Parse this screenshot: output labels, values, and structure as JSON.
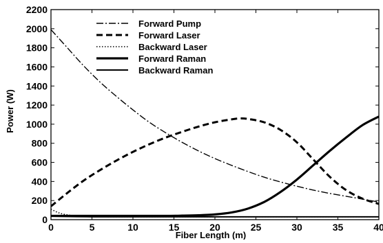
{
  "chart_data": {
    "type": "line",
    "title": "",
    "xlabel": "Fiber Length (m)",
    "ylabel": "Power (W)",
    "xlim": [
      0,
      40
    ],
    "ylim": [
      0,
      2200
    ],
    "xticks": [
      0,
      5,
      10,
      15,
      20,
      25,
      30,
      35,
      40
    ],
    "yticks": [
      0,
      200,
      400,
      600,
      800,
      1000,
      1200,
      1400,
      1600,
      1800,
      2000,
      2200
    ],
    "grid": false,
    "legend_position": "top-left",
    "series": [
      {
        "name": "Forward Pump",
        "style": "dash-dot",
        "x": [
          0,
          2,
          4,
          6,
          8,
          10,
          12,
          14,
          16,
          18,
          20,
          22,
          24,
          26,
          28,
          30,
          32,
          34,
          36,
          38,
          40
        ],
        "y": [
          1990,
          1800,
          1610,
          1440,
          1290,
          1150,
          1020,
          910,
          810,
          720,
          640,
          570,
          505,
          445,
          395,
          350,
          310,
          275,
          245,
          215,
          185
        ]
      },
      {
        "name": "Forward Laser",
        "style": "dashed",
        "x": [
          0,
          2,
          4,
          6,
          8,
          10,
          12,
          14,
          16,
          18,
          20,
          22,
          23,
          24,
          26,
          28,
          30,
          32,
          34,
          36,
          38,
          40
        ],
        "y": [
          140,
          280,
          410,
          520,
          620,
          710,
          790,
          860,
          920,
          975,
          1020,
          1050,
          1060,
          1055,
          1020,
          940,
          810,
          630,
          450,
          310,
          220,
          165
        ]
      },
      {
        "name": "Backward Laser",
        "style": "dotted",
        "x": [
          0,
          1,
          2,
          3,
          4,
          5,
          8,
          12,
          20,
          30,
          40
        ],
        "y": [
          110,
          70,
          50,
          40,
          35,
          32,
          30,
          30,
          30,
          30,
          30
        ]
      },
      {
        "name": "Forward Raman",
        "style": "solid-thick",
        "x": [
          0,
          5,
          10,
          14,
          16,
          18,
          20,
          22,
          24,
          26,
          28,
          30,
          32,
          34,
          36,
          38,
          40
        ],
        "y": [
          40,
          40,
          40,
          40,
          42,
          46,
          55,
          75,
          115,
          185,
          290,
          420,
          570,
          720,
          860,
          990,
          1080
        ]
      },
      {
        "name": "Backward Raman",
        "style": "solid",
        "x": [
          0,
          5,
          10,
          20,
          30,
          40
        ],
        "y": [
          35,
          30,
          30,
          30,
          30,
          30
        ]
      }
    ]
  }
}
